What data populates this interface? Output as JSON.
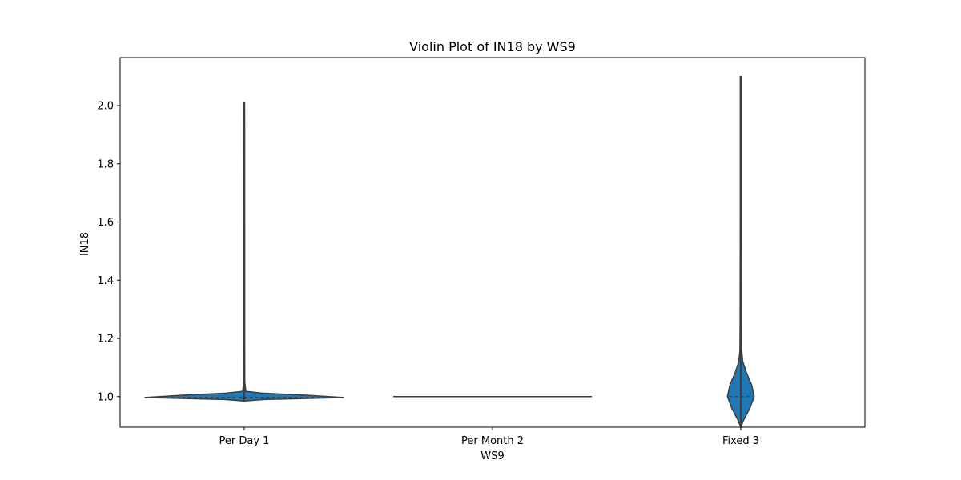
{
  "chart_data": {
    "type": "violin",
    "title": "Violin Plot of IN18 by WS9",
    "xlabel": "WS9",
    "ylabel": "IN18",
    "categories": [
      "Per Day 1",
      "Per Month 2",
      "Fixed 3"
    ],
    "ylim": [
      0.895,
      2.165
    ],
    "yticks": [
      1.0,
      1.2,
      1.4,
      1.6,
      1.8,
      2.0
    ],
    "grid": false,
    "fill_color": "#1f77b4",
    "edge_color": "#3d3d3d",
    "violins": [
      {
        "category": "Per Day 1",
        "min": 0.985,
        "max": 2.01,
        "median": 0.997,
        "profile": [
          [
            0.985,
            0.0
          ],
          [
            0.99,
            0.2
          ],
          [
            0.997,
            1.0
          ],
          [
            1.005,
            0.62
          ],
          [
            1.012,
            0.18
          ],
          [
            1.018,
            0.02
          ],
          [
            1.02,
            0.015
          ],
          [
            1.05,
            0.006
          ],
          [
            1.2,
            0.005
          ],
          [
            1.6,
            0.005
          ],
          [
            2.01,
            0.004
          ]
        ]
      },
      {
        "category": "Per Month 2",
        "min": 1.0,
        "max": 1.0,
        "median": 1.0,
        "profile": []
      },
      {
        "category": "Fixed 3",
        "min": 0.895,
        "max": 2.1,
        "median": 1.0,
        "profile": [
          [
            0.895,
            0.0
          ],
          [
            0.92,
            0.03
          ],
          [
            0.96,
            0.09
          ],
          [
            1.0,
            0.135
          ],
          [
            1.04,
            0.11
          ],
          [
            1.08,
            0.06
          ],
          [
            1.12,
            0.02
          ],
          [
            1.16,
            0.009
          ],
          [
            1.25,
            0.007
          ],
          [
            1.6,
            0.006
          ],
          [
            2.1,
            0.006
          ]
        ]
      }
    ]
  }
}
